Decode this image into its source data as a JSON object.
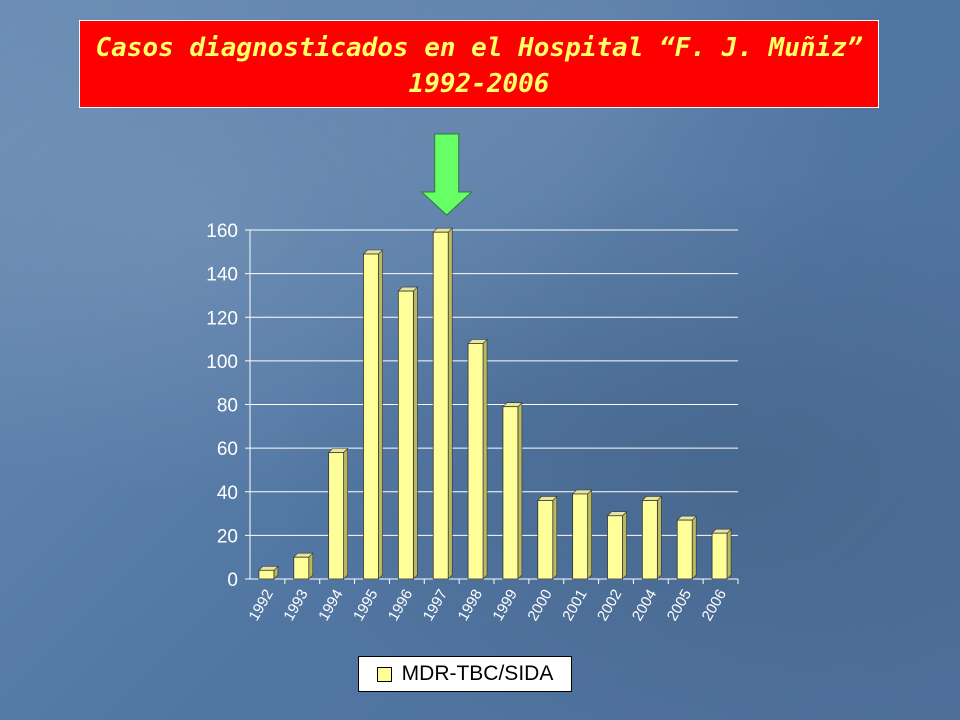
{
  "title": {
    "line1": "Casos diagnosticados en el Hospital “F. J. Muñiz”",
    "line2": "1992-2006"
  },
  "colors": {
    "title_bg": "#ff0000",
    "title_text": "#ffff66",
    "bar_fill": "#ffff99",
    "arrow": "#66ff66"
  },
  "marker": {
    "icon": "down-arrow-icon",
    "points_to": "1997"
  },
  "chart_data": {
    "type": "bar",
    "categories": [
      "1992",
      "1993",
      "1994",
      "1995",
      "1996",
      "1997",
      "1998",
      "1999",
      "2000",
      "2001",
      "2002",
      "2004",
      "2005",
      "2006"
    ],
    "series": [
      {
        "name": "MDR-TBC/SIDA",
        "values": [
          4,
          10,
          58,
          149,
          132,
          159,
          108,
          79,
          36,
          39,
          29,
          36,
          27,
          21
        ]
      }
    ],
    "ylim": [
      0,
      160
    ],
    "yticks": [
      0,
      20,
      40,
      60,
      80,
      100,
      120,
      140,
      160
    ],
    "grid": true,
    "legend": "bottom"
  }
}
